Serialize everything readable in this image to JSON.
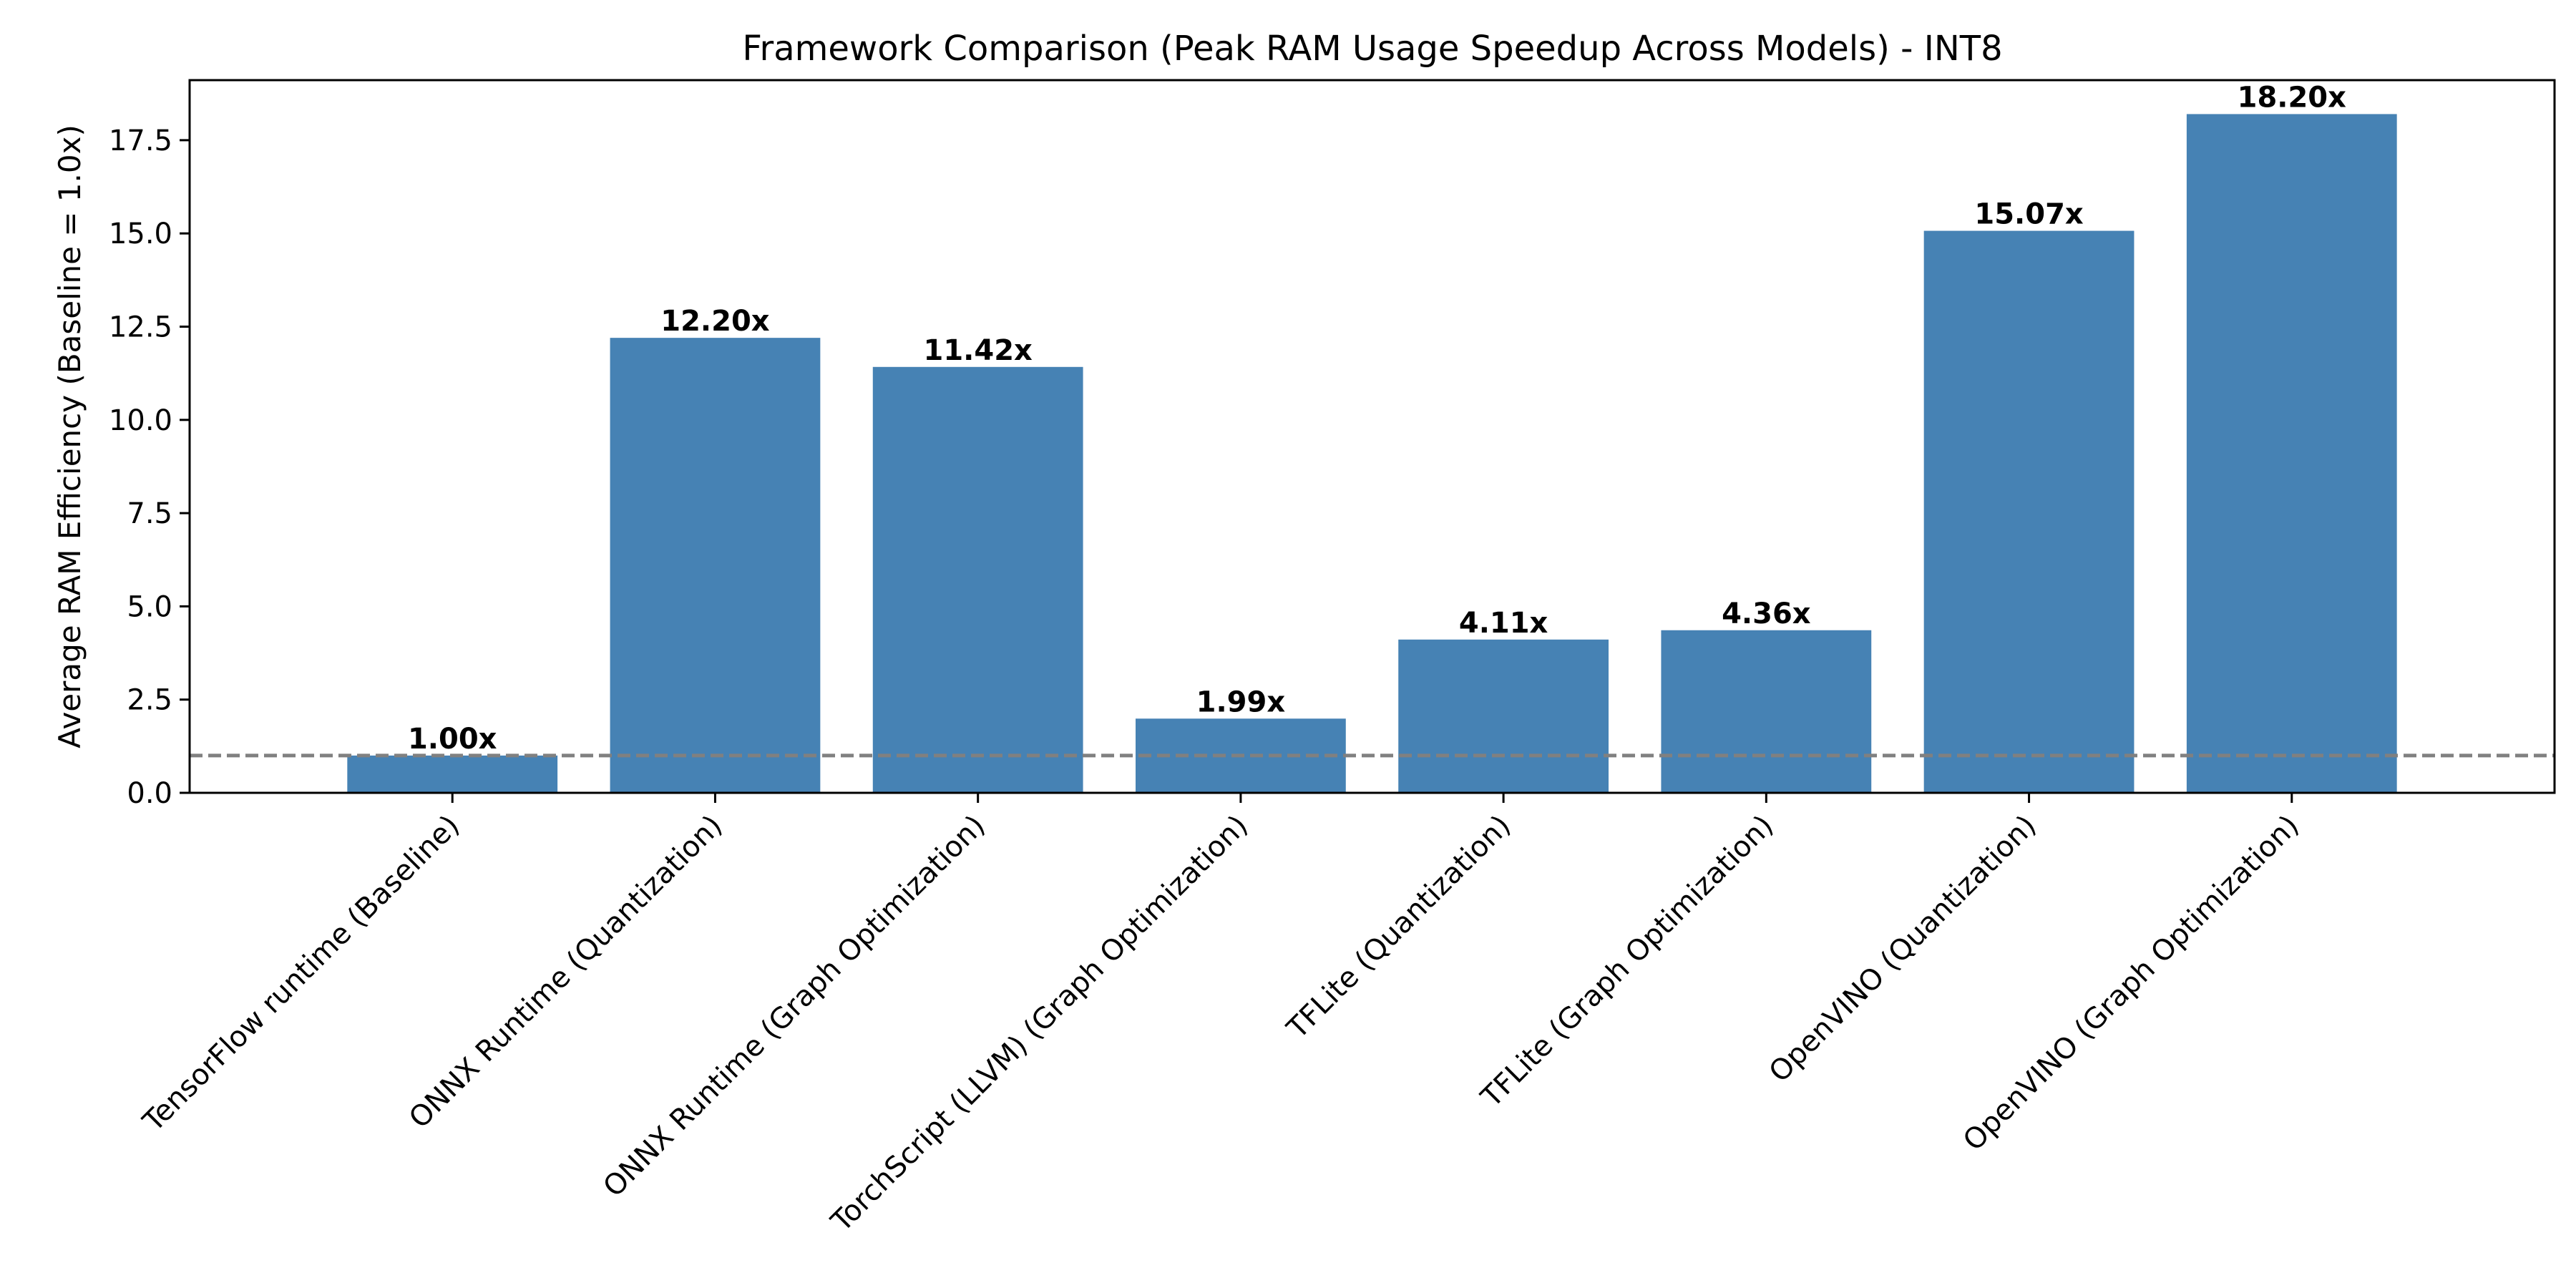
{
  "chart_data": {
    "type": "bar",
    "title": "Framework Comparison (Peak RAM Usage Speedup Across Models) - INT8",
    "xlabel": "",
    "ylabel": "Average RAM Efficiency (Baseline = 1.0x)",
    "categories": [
      "TensorFlow runtime (Baseline)",
      "ONNX Runtime (Quantization)",
      "ONNX Runtime (Graph Optimization)",
      "TorchScript (LLVM) (Graph Optimization)",
      "TFLite (Quantization)",
      "TFLite (Graph Optimization)",
      "OpenVINO (Quantization)",
      "OpenVINO (Graph Optimization)"
    ],
    "values": [
      1.0,
      12.2,
      11.42,
      1.99,
      4.11,
      4.36,
      15.07,
      18.2
    ],
    "value_labels": [
      "1.00x",
      "12.20x",
      "11.42x",
      "1.99x",
      "4.11x",
      "4.36x",
      "15.07x",
      "18.20x"
    ],
    "ylim": [
      0,
      19.11
    ],
    "yticks": [
      0.0,
      2.5,
      5.0,
      7.5,
      10.0,
      12.5,
      15.0,
      17.5
    ],
    "ytick_labels": [
      "0.0",
      "2.5",
      "5.0",
      "7.5",
      "10.0",
      "12.5",
      "15.0",
      "17.5"
    ],
    "baseline": 1.0,
    "grid": false,
    "legend": "none",
    "colors": {
      "bar": "#4682b4",
      "baseline_line": "#808080",
      "axes": "#000000"
    }
  }
}
